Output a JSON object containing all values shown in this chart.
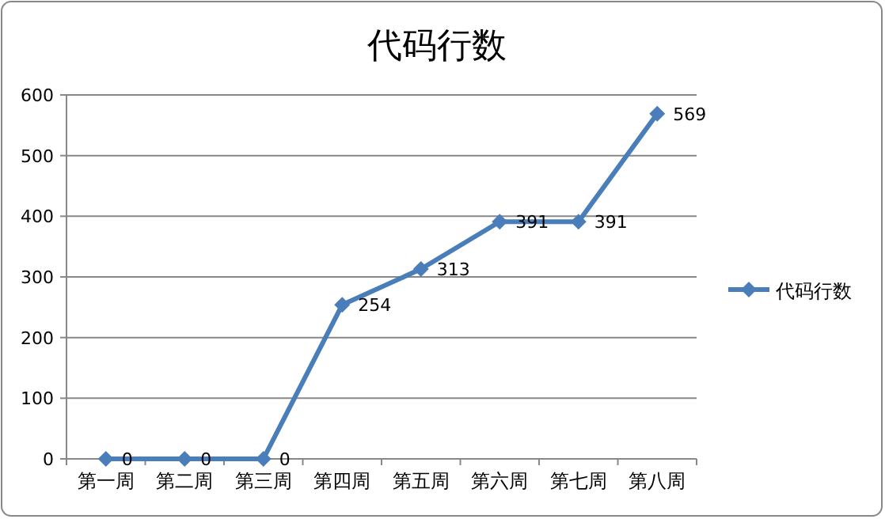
{
  "chart_data": {
    "type": "line",
    "title": "代码行数",
    "categories": [
      "第一周",
      "第二周",
      "第三周",
      "第四周",
      "第五周",
      "第六周",
      "第七周",
      "第八周"
    ],
    "series": [
      {
        "name": "代码行数",
        "color": "#4a7ebb",
        "values": [
          0,
          0,
          0,
          254,
          313,
          391,
          391,
          569
        ]
      }
    ],
    "ylim": [
      0,
      600
    ],
    "yticks": [
      0,
      100,
      200,
      300,
      400,
      500,
      600
    ],
    "grid": "y",
    "legend": "right",
    "marker": "diamond",
    "data_labels": true
  }
}
